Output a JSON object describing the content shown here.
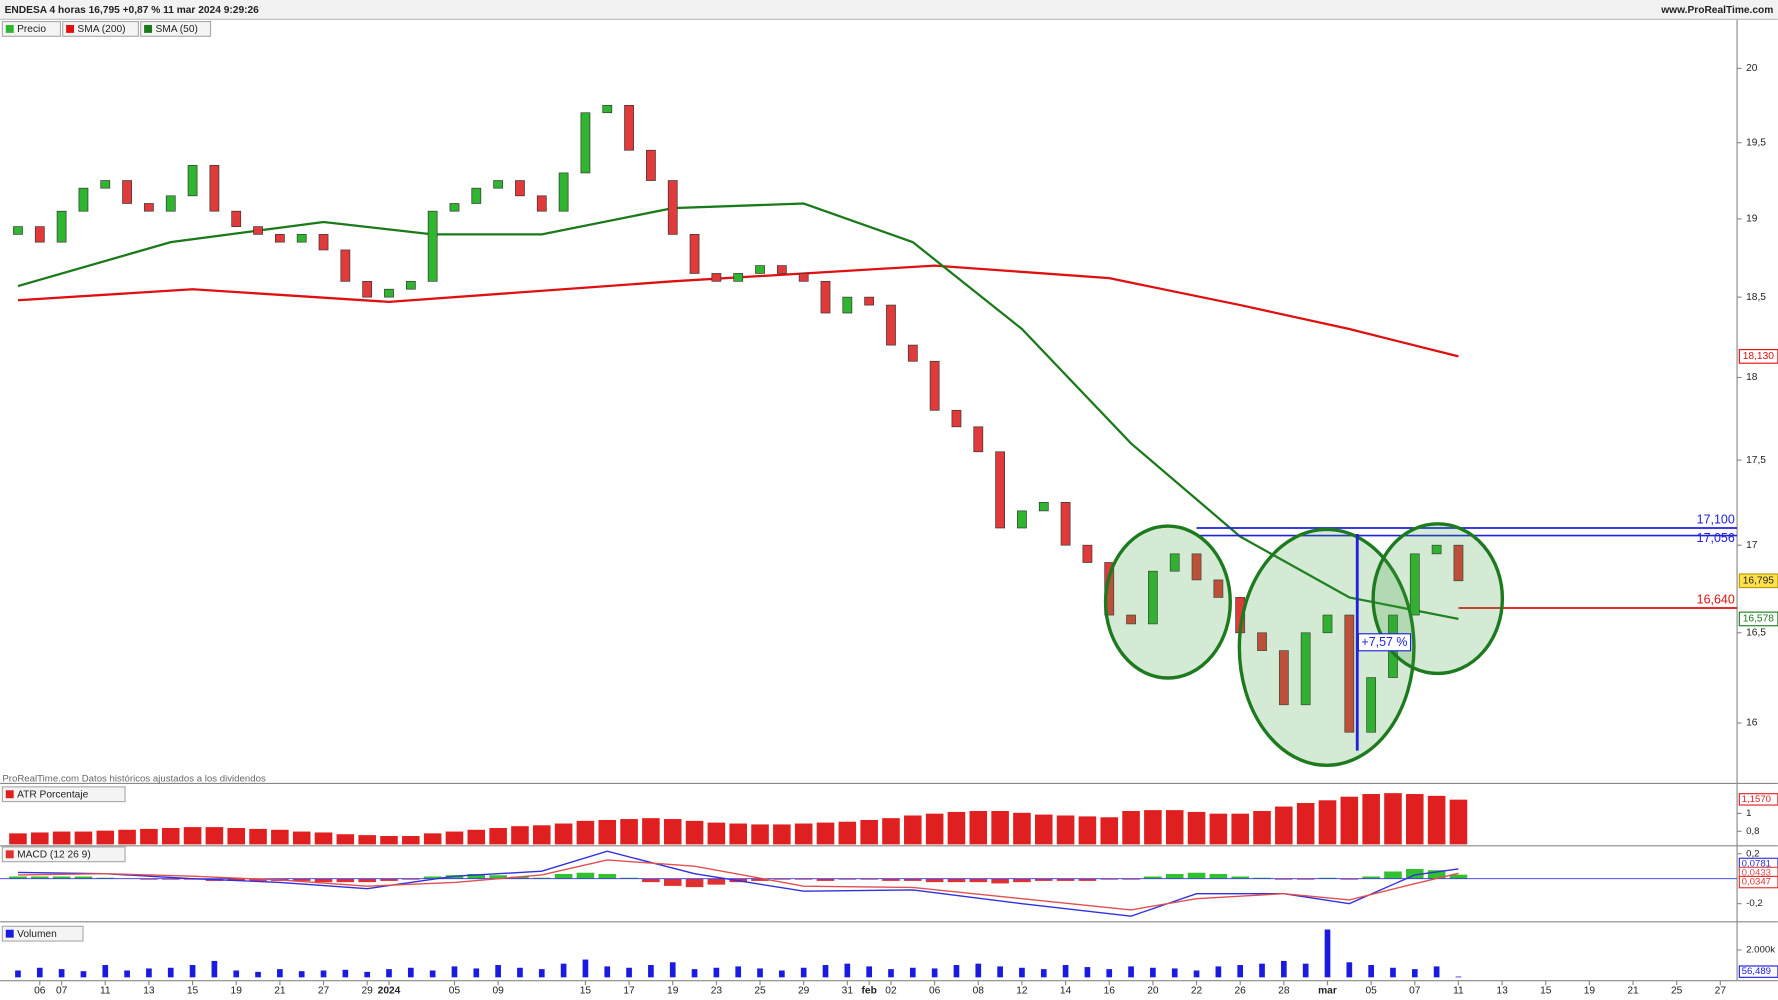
{
  "header": {
    "title": "ENDESA 4 horas 16,795 +0,87 % 11 mar 2024 9:29:26",
    "site": "www.ProRealTime.com",
    "watermark": "ProRealTime.com  Datos históricos ajustados a los dividendos",
    "annotation": "+7,57 %"
  },
  "chart_data": {
    "type": "candlestick",
    "price_name": "Precio",
    "log": true,
    "ylim": [
      15.68,
      20.33
    ],
    "yticks": [
      20,
      {
        "value": 19.5,
        "label": "19,5"
      },
      19,
      {
        "value": 18.5,
        "label": "18,5"
      },
      18,
      {
        "value": 17.5,
        "label": "17,5"
      },
      17,
      {
        "value": 16.5,
        "label": "16,5"
      },
      16
    ],
    "xlim": [
      -0.8,
      80
    ],
    "xticks": [
      {
        "value": 1,
        "label": "06"
      },
      {
        "value": 2,
        "label": "07"
      },
      {
        "value": 4,
        "label": "11"
      },
      {
        "value": 6,
        "label": "13"
      },
      {
        "value": 8,
        "label": "15"
      },
      {
        "value": 10,
        "label": "19"
      },
      {
        "value": 12,
        "label": "21"
      },
      {
        "value": 14,
        "label": "27"
      },
      {
        "value": 16,
        "label": "29"
      },
      {
        "value": 17,
        "label": "2024"
      },
      {
        "value": 20,
        "label": "05"
      },
      {
        "value": 22,
        "label": "09"
      },
      {
        "value": 26,
        "label": "15"
      },
      {
        "value": 28,
        "label": "17"
      },
      {
        "value": 30,
        "label": "19"
      },
      {
        "value": 32,
        "label": "23"
      },
      {
        "value": 34,
        "label": "25"
      },
      {
        "value": 36,
        "label": "29"
      },
      {
        "value": 38,
        "label": "31"
      },
      {
        "value": 39,
        "label": "feb"
      },
      {
        "value": 40,
        "label": "02"
      },
      {
        "value": 42,
        "label": "06"
      },
      {
        "value": 44,
        "label": "08"
      },
      {
        "value": 46,
        "label": "12"
      },
      {
        "value": 48,
        "label": "14"
      },
      {
        "value": 50,
        "label": "16"
      },
      {
        "value": 52,
        "label": "20"
      },
      {
        "value": 54,
        "label": "22"
      },
      {
        "value": 56,
        "label": "26"
      },
      {
        "value": 58,
        "label": "28"
      },
      {
        "value": 60,
        "label": "mar"
      },
      {
        "value": 62,
        "label": "05"
      },
      {
        "value": 64,
        "label": "07"
      },
      {
        "value": 66,
        "label": "11"
      },
      {
        "value": 68,
        "label": "13"
      },
      {
        "value": 70,
        "label": "15"
      },
      {
        "value": 72,
        "label": "19"
      },
      {
        "value": 74,
        "label": "21"
      },
      {
        "value": 76,
        "label": "25"
      },
      {
        "value": 78,
        "label": "27"
      }
    ],
    "open": [
      18.9,
      18.95,
      18.85,
      19.05,
      19.2,
      19.25,
      19.1,
      19.05,
      19.15,
      19.35,
      19.05,
      18.95,
      18.9,
      18.85,
      18.9,
      18.8,
      18.6,
      18.5,
      18.55,
      18.6,
      19.05,
      19.1,
      19.2,
      19.25,
      19.15,
      19.05,
      19.3,
      19.7,
      19.75,
      19.45,
      19.25,
      18.9,
      18.65,
      18.6,
      18.65,
      18.7,
      18.65,
      18.6,
      18.4,
      18.5,
      18.45,
      18.2,
      18.1,
      17.8,
      17.7,
      17.55,
      17.1,
      17.2,
      17.25,
      17.0,
      16.9,
      16.6,
      16.55,
      16.85,
      16.95,
      16.8,
      16.7,
      16.5,
      16.4,
      16.1,
      16.5,
      16.6,
      15.95,
      16.25,
      16.6,
      16.95,
      17.0
    ],
    "close": [
      18.95,
      18.85,
      19.05,
      19.2,
      19.25,
      19.1,
      19.05,
      19.15,
      19.35,
      19.05,
      18.95,
      18.9,
      18.85,
      18.9,
      18.8,
      18.6,
      18.5,
      18.55,
      18.6,
      19.05,
      19.1,
      19.2,
      19.25,
      19.15,
      19.05,
      19.3,
      19.7,
      19.75,
      19.45,
      19.25,
      18.9,
      18.65,
      18.6,
      18.65,
      18.7,
      18.65,
      18.6,
      18.4,
      18.5,
      18.45,
      18.2,
      18.1,
      17.8,
      17.7,
      17.55,
      17.1,
      17.2,
      17.25,
      17.0,
      16.9,
      16.6,
      16.55,
      16.85,
      16.95,
      16.8,
      16.7,
      16.5,
      16.4,
      16.1,
      16.5,
      16.6,
      15.95,
      16.25,
      16.6,
      16.95,
      17.0,
      16.795
    ],
    "up_color": "#2fb52f",
    "down_color": "#e03a3a",
    "series": [
      {
        "name": "SMA (200)",
        "color": "#e01010",
        "x": [
          0,
          8,
          17,
          30,
          42,
          50,
          56,
          61,
          66
        ],
        "values": [
          18.48,
          18.55,
          18.47,
          18.6,
          18.7,
          18.62,
          18.45,
          18.3,
          18.13
        ],
        "last_label": "18,130"
      },
      {
        "name": "SMA (50)",
        "color": "#1a7a1a",
        "x": [
          0,
          7,
          14,
          19,
          24,
          30,
          36,
          41,
          46,
          51,
          56,
          61,
          66
        ],
        "values": [
          18.57,
          18.85,
          18.98,
          18.9,
          18.9,
          19.07,
          19.1,
          18.85,
          18.3,
          17.6,
          17.05,
          16.7,
          16.578
        ],
        "last_label": "16,578"
      }
    ],
    "last_label": "16,795",
    "levels": [
      {
        "value": 17.1,
        "label": "17,100",
        "color": "#2020e0",
        "from": 54
      },
      {
        "value": 17.056,
        "label": "17,056",
        "color": "#2020e0",
        "from": 54
      },
      {
        "value": 16.64,
        "label": "16,640",
        "color": "#e01010",
        "from": 66
      }
    ],
    "atr": {
      "name": "ATR Porcentaje",
      "color": "#e02020",
      "ylim": [
        0.65,
        1.31
      ],
      "yticks": [
        1,
        {
          "value": 0.8,
          "label": "0,8"
        }
      ],
      "last_label": "1,1570",
      "values": [
        0.78,
        0.79,
        0.8,
        0.8,
        0.81,
        0.82,
        0.83,
        0.84,
        0.85,
        0.85,
        0.84,
        0.83,
        0.82,
        0.8,
        0.79,
        0.77,
        0.76,
        0.75,
        0.75,
        0.78,
        0.8,
        0.82,
        0.84,
        0.86,
        0.87,
        0.89,
        0.92,
        0.93,
        0.94,
        0.95,
        0.94,
        0.92,
        0.9,
        0.89,
        0.88,
        0.88,
        0.89,
        0.9,
        0.91,
        0.93,
        0.95,
        0.98,
        1.0,
        1.02,
        1.03,
        1.03,
        1.01,
        0.99,
        0.98,
        0.97,
        0.96,
        1.03,
        1.04,
        1.04,
        1.02,
        1.0,
        1.0,
        1.03,
        1.08,
        1.12,
        1.15,
        1.19,
        1.22,
        1.23,
        1.22,
        1.2,
        1.157
      ]
    },
    "macd": {
      "name": "MACD (12 26 9)",
      "ylim": [
        -0.336,
        0.2545
      ],
      "yticks": [
        {
          "value": 0.2,
          "label": "0,2"
        },
        {
          "value": -0.2,
          "label": "-0,2"
        }
      ],
      "histogram": [
        0.02,
        0.02,
        0.02,
        0.02,
        0.01,
        0,
        -0.01,
        -0.01,
        -0.01,
        -0.02,
        -0.02,
        -0.02,
        -0.02,
        -0.02,
        -0.03,
        -0.03,
        -0.03,
        -0.02,
        -0.01,
        0.02,
        0.03,
        0.04,
        0.03,
        0.02,
        0.01,
        0.04,
        0.05,
        0.04,
        0.01,
        -0.03,
        -0.06,
        -0.07,
        -0.05,
        -0.03,
        -0.02,
        -0.01,
        -0.01,
        -0.02,
        -0.01,
        -0.01,
        -0.02,
        -0.02,
        -0.03,
        -0.03,
        -0.03,
        -0.04,
        -0.03,
        -0.02,
        -0.02,
        -0.02,
        -0.01,
        -0.01,
        0.02,
        0.04,
        0.05,
        0.04,
        0.02,
        0.01,
        -0.01,
        -0.01,
        0.01,
        -0.01,
        0.02,
        0.06,
        0.08,
        0.07,
        0.0347
      ],
      "hist_label": "0,0347",
      "pos_color": "#30c030",
      "neg_color": "#e03030",
      "x": [
        0,
        4,
        8,
        12,
        16,
        20,
        24,
        27,
        31,
        36,
        41,
        46,
        51,
        54,
        58,
        61,
        64,
        66
      ],
      "lines": [
        {
          "color": "#3030e0",
          "label": "0,0781",
          "values": [
            0.05,
            0.04,
            0.0,
            -0.03,
            -0.08,
            0.02,
            0.06,
            0.22,
            0.04,
            -0.1,
            -0.09,
            -0.2,
            -0.3,
            -0.12,
            -0.12,
            -0.2,
            0.03,
            0.0781
          ]
        },
        {
          "color": "#e05050",
          "label": "0,0433",
          "values": [
            0.03,
            0.04,
            0.02,
            -0.01,
            -0.06,
            -0.03,
            0.03,
            0.15,
            0.1,
            -0.06,
            -0.07,
            -0.16,
            -0.25,
            -0.16,
            -0.12,
            -0.17,
            -0.04,
            0.0433
          ]
        }
      ]
    },
    "volume": {
      "name": "Volumen",
      "color": "#1a1ae0",
      "ylim": [
        0,
        3900
      ],
      "yticks": [
        {
          "value": 2000,
          "label": "2.000k"
        }
      ],
      "last_label": "56,489",
      "values": [
        500,
        700,
        600,
        450,
        900,
        500,
        650,
        700,
        900,
        1200,
        500,
        400,
        600,
        450,
        500,
        550,
        400,
        600,
        700,
        500,
        800,
        650,
        900,
        700,
        600,
        1000,
        1300,
        800,
        700,
        900,
        1100,
        600,
        700,
        800,
        650,
        500,
        700,
        900,
        1000,
        800,
        600,
        700,
        650,
        900,
        1000,
        800,
        700,
        600,
        900,
        750,
        600,
        800,
        700,
        650,
        500,
        800,
        900,
        1000,
        1200,
        1000,
        3500,
        1100,
        900,
        700,
        600,
        800,
        56.489
      ]
    }
  }
}
